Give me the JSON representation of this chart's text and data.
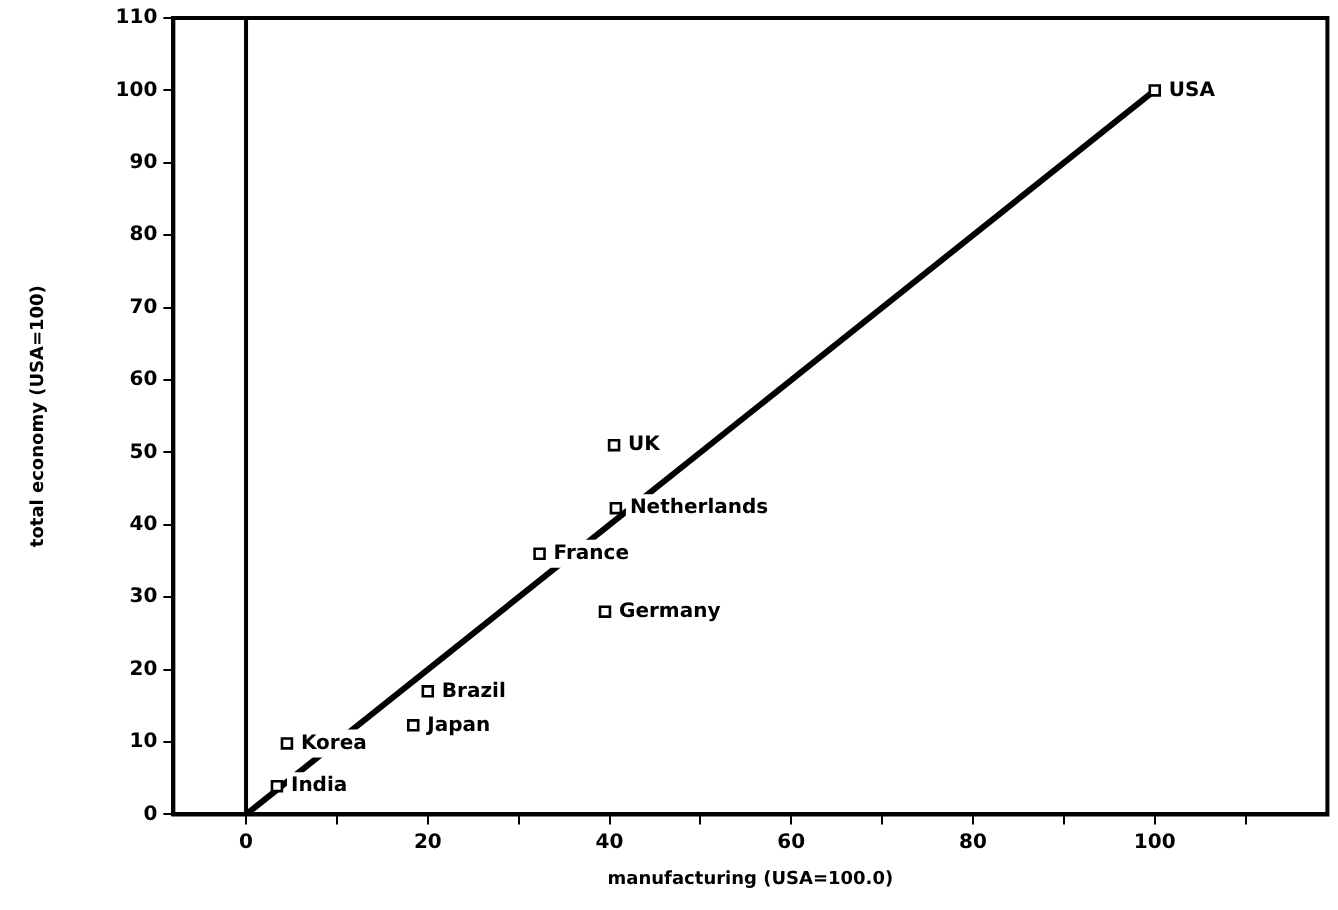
{
  "chart_data": {
    "type": "scatter",
    "xlabel": "manufacturing (USA=100.0)",
    "ylabel": "total economy (USA=100)",
    "series": [
      {
        "marker": "square",
        "color": "#000000",
        "x": [
          100,
          40.5,
          40.7,
          32.3,
          39.5,
          20,
          18.4,
          4.5,
          3.4
        ],
        "values": [
          100,
          51,
          42.3,
          36,
          28,
          17,
          12.3,
          9.8,
          3.9
        ]
      },
      {
        "type": "line",
        "marker": "none",
        "color": "#000000",
        "x": [
          0,
          100
        ],
        "values": [
          0,
          100
        ]
      }
    ],
    "annotations": [
      {
        "text": "USA",
        "x": 100,
        "y": 100
      },
      {
        "text": "UK",
        "x": 40.5,
        "y": 51
      },
      {
        "text": "Netherlands",
        "x": 40.7,
        "y": 42.3
      },
      {
        "text": "France",
        "x": 32.3,
        "y": 36
      },
      {
        "text": "Germany",
        "x": 39.5,
        "y": 28
      },
      {
        "text": "Brazil",
        "x": 20,
        "y": 17
      },
      {
        "text": "Japan",
        "x": 18.4,
        "y": 12.3
      },
      {
        "text": "Korea",
        "x": 4.5,
        "y": 9.8
      },
      {
        "text": "India",
        "x": 3.4,
        "y": 3.9
      }
    ],
    "ref_lines": [
      {
        "axis": "x",
        "value": 0,
        "color": "#000000"
      }
    ],
    "xlim": [
      -8,
      119
    ],
    "ylim": [
      0,
      110
    ],
    "xticks": [
      0,
      {
        "value": 10,
        "label": null
      },
      20,
      {
        "value": 30,
        "label": null
      },
      40,
      {
        "value": 50,
        "label": null
      },
      60,
      {
        "value": 70,
        "label": null
      },
      80,
      {
        "value": 90,
        "label": null
      },
      100,
      {
        "value": 110,
        "label": null
      }
    ],
    "yticks": [
      0,
      10,
      20,
      30,
      40,
      50,
      60,
      70,
      80,
      90,
      100,
      110
    ],
    "grid": false,
    "legend": false
  }
}
